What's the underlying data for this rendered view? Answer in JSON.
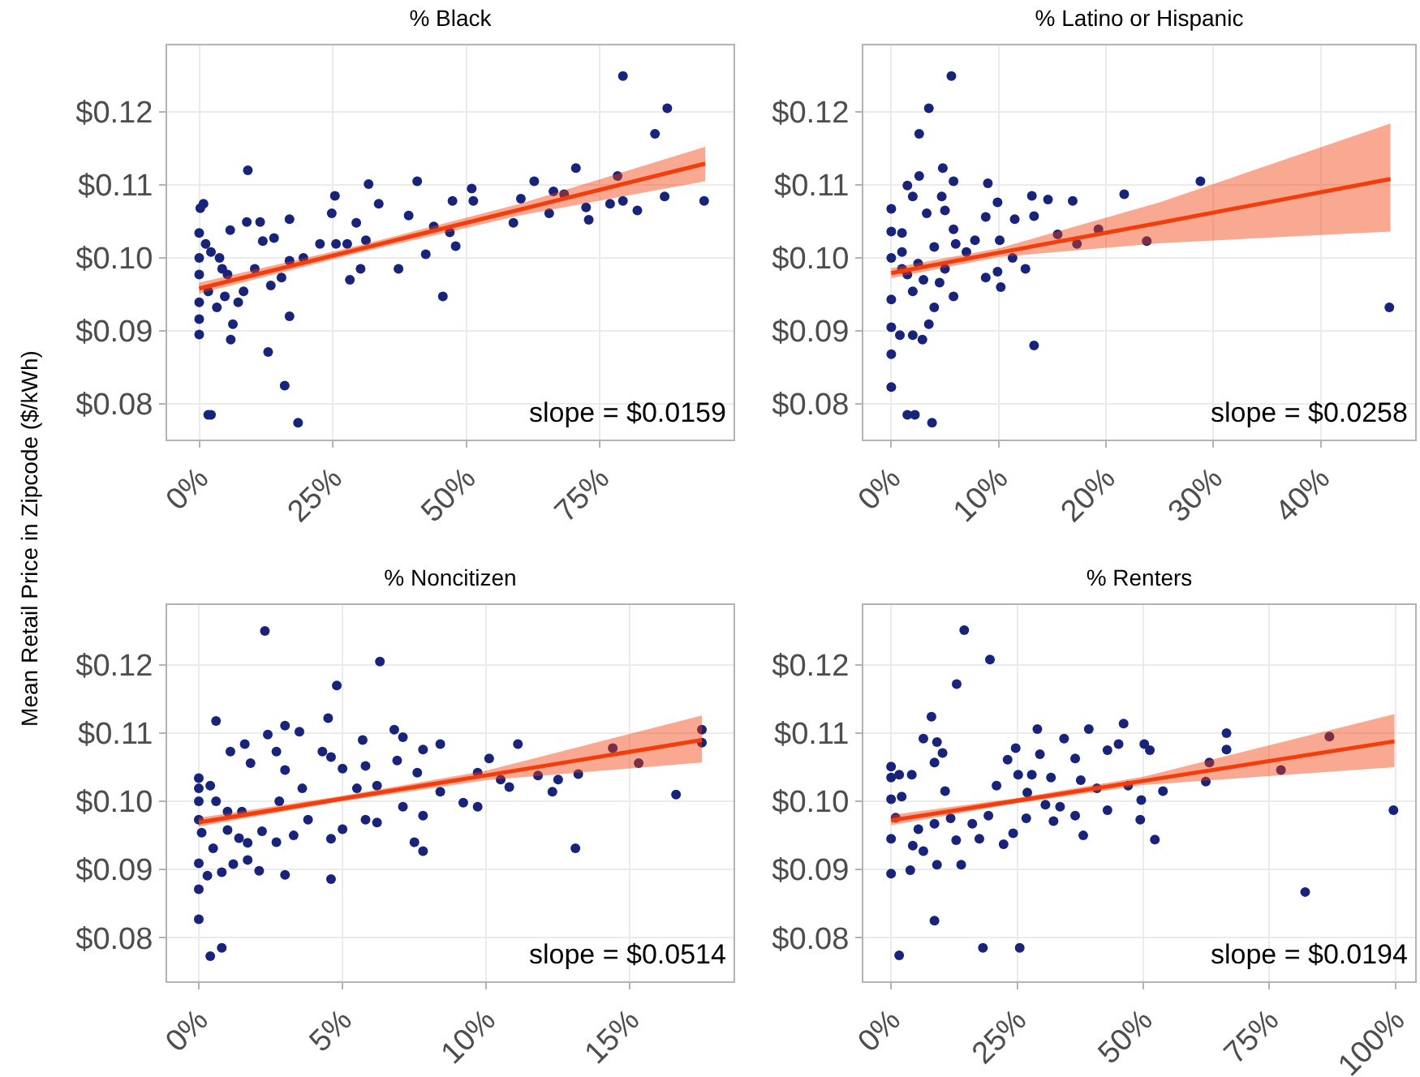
{
  "chart_data": [
    {
      "type": "scatter",
      "title": "% Black",
      "ylabel": "Mean Retail Price in Zipcode ($/kWh)",
      "grid": true,
      "line_style": "solid",
      "annotations": [
        "slope = $0.0159"
      ],
      "xlim": [
        -0.06,
        1.0
      ],
      "xticks": [
        {
          "value": 0,
          "label": "0%"
        },
        {
          "value": 0.25,
          "label": "25%"
        },
        {
          "value": 0.5,
          "label": "50%"
        },
        {
          "value": 0.75,
          "label": "75%"
        }
      ],
      "ylim": [
        0.0751,
        0.1291
      ],
      "yticks": [
        {
          "value": 0.08,
          "label": "$0.08"
        },
        {
          "value": 0.09,
          "label": "$0.09"
        },
        {
          "value": 0.1,
          "label": "$0.10"
        },
        {
          "value": 0.11,
          "label": "$0.11"
        },
        {
          "value": 0.12,
          "label": "$0.12"
        }
      ],
      "series": [
        {
          "type": "scatter",
          "marker": "circle",
          "color": "#18247a",
          "x": [
            0.793,
            0.876,
            0.853,
            0.091,
            0.705,
            0.783,
            0.627,
            0.408,
            0.317,
            0.51,
            0.254,
            0.663,
            0.683,
            0.602,
            0.474,
            0.336,
            0.513,
            0.871,
            0.945,
            0.769,
            0.793,
            0.655,
            0.82,
            0.724,
            0.729,
            0.588,
            0.392,
            0.248,
            0.294,
            0.439,
            0.469,
            0.48,
            0.424,
            0.373,
            0.456,
            0.002,
            0.008,
            0,
            0,
            0,
            0,
            0,
            0,
            0.012,
            0.017,
            0.033,
            0.043,
            0.058,
            0.063,
            0.059,
            0.089,
            0.114,
            0.119,
            0.14,
            0.169,
            0.169,
            0.129,
            0.16,
            0.185,
            0.022,
            0.017,
            0.195,
            0.226,
            0.256,
            0.277,
            0.282,
            0.302,
            0.312,
            0.083,
            0.073,
            0.053,
            0.104,
            0.134,
            0.154,
            0.169,
            0.022,
            0.038,
            0.048
          ],
          "values": [
            0.1249,
            0.1205,
            0.117,
            0.112,
            0.1123,
            0.1112,
            0.1105,
            0.1105,
            0.1101,
            0.1095,
            0.1085,
            0.1091,
            0.1087,
            0.1081,
            0.1078,
            0.1074,
            0.1078,
            0.1084,
            0.1078,
            0.1074,
            0.1078,
            0.1061,
            0.1065,
            0.1069,
            0.1052,
            0.1048,
            0.1058,
            0.1061,
            0.1048,
            0.1043,
            0.1035,
            0.1016,
            0.1005,
            0.0985,
            0.0947,
            0.1068,
            0.1074,
            0.1034,
            0.1,
            0.0977,
            0.0939,
            0.0916,
            0.0895,
            0.1019,
            0.0954,
            0.0932,
            0.0985,
            0.1038,
            0.0909,
            0.0888,
            0.1049,
            0.1049,
            0.1023,
            0.1027,
            0.1053,
            0.092,
            0.0871,
            0.0825,
            0.0774,
            0.0785,
            0.0785,
            0.1,
            0.1019,
            0.1019,
            0.1019,
            0.097,
            0.0985,
            0.1024,
            0.0954,
            0.0939,
            0.0977,
            0.0985,
            0.0962,
            0.0973,
            0.0996,
            0.1008,
            0.1,
            0.0947
          ]
        },
        {
          "type": "line",
          "color": "#f23d0c",
          "x": [
            0,
            0.3,
            0.6,
            0.947
          ],
          "values": [
            0.0958,
            0.1012,
            0.1066,
            0.1129
          ],
          "lower": [
            0.0951,
            0.1007,
            0.1058,
            0.1105
          ],
          "upper": [
            0.0966,
            0.1017,
            0.1074,
            0.1152
          ]
        }
      ]
    },
    {
      "type": "scatter",
      "title": "% Latino or Hispanic",
      "grid": true,
      "line_style": "solid",
      "annotations": [
        "slope = $0.0258"
      ],
      "xlim": [
        -0.026,
        0.488
      ],
      "xticks": [
        {
          "value": 0,
          "label": "0%"
        },
        {
          "value": 0.1,
          "label": "10%"
        },
        {
          "value": 0.2,
          "label": "20%"
        },
        {
          "value": 0.3,
          "label": "30%"
        },
        {
          "value": 0.4,
          "label": "40%"
        }
      ],
      "ylim": [
        0.0751,
        0.1291
      ],
      "yticks": [
        {
          "value": 0.08,
          "label": "$0.08"
        },
        {
          "value": 0.09,
          "label": "$0.09"
        },
        {
          "value": 0.1,
          "label": "$0.10"
        },
        {
          "value": 0.11,
          "label": "$0.11"
        },
        {
          "value": 0.12,
          "label": "$0.12"
        }
      ],
      "series": [
        {
          "type": "scatter",
          "marker": "circle",
          "color": "#18247a",
          "x": [
            0.056,
            0.035,
            0.026,
            0.048,
            0.026,
            0.288,
            0.09,
            0.058,
            0.015,
            0.02,
            0.047,
            0.217,
            0.131,
            0.146,
            0.169,
            0.099,
            0,
            0.033,
            0.05,
            0.088,
            0.133,
            0.115,
            0,
            0.01,
            0.058,
            0.155,
            0.193,
            0.238,
            0.173,
            0.078,
            0.101,
            0,
            0.01,
            0.04,
            0.06,
            0.113,
            0.125,
            0.099,
            0.088,
            0.102,
            0.015,
            0.03,
            0.045,
            0.058,
            0,
            0.02,
            0.04,
            0,
            0.008,
            0.02,
            0.029,
            0.035,
            0.133,
            0.464,
            0,
            0,
            0.015,
            0.022,
            0.038,
            0.01,
            0.025,
            0.05,
            0.07
          ],
          "values": [
            0.1249,
            0.1205,
            0.117,
            0.1123,
            0.1112,
            0.1105,
            0.1102,
            0.1105,
            0.1099,
            0.1084,
            0.1084,
            0.1087,
            0.1085,
            0.108,
            0.1078,
            0.1076,
            0.1067,
            0.1061,
            0.1065,
            0.1056,
            0.1057,
            0.1053,
            0.1036,
            0.1034,
            0.1039,
            0.1032,
            0.1039,
            0.1023,
            0.1019,
            0.1024,
            0.1024,
            0.1,
            0.1008,
            0.1015,
            0.1019,
            0.1,
            0.0985,
            0.0981,
            0.0973,
            0.096,
            0.0977,
            0.097,
            0.0966,
            0.0947,
            0.0943,
            0.0954,
            0.0932,
            0.0905,
            0.0894,
            0.0894,
            0.0888,
            0.0909,
            0.088,
            0.0932,
            0.0868,
            0.0823,
            0.0785,
            0.0785,
            0.0774,
            0.0985,
            0.0992,
            0.0985,
            0.1008
          ]
        },
        {
          "type": "line",
          "color": "#f23d0c",
          "x": [
            0,
            0.1,
            0.25,
            0.465
          ],
          "values": [
            0.0979,
            0.1007,
            0.1048,
            0.1108
          ],
          "lower": [
            0.0972,
            0.1001,
            0.102,
            0.1036
          ],
          "upper": [
            0.0986,
            0.1013,
            0.1076,
            0.1184
          ]
        }
      ]
    },
    {
      "type": "scatter",
      "title": "% Noncitizen",
      "grid": true,
      "line_style": "solid",
      "annotations": [
        "slope = $0.0514"
      ],
      "xlim": [
        -0.011,
        0.186
      ],
      "xticks": [
        {
          "value": 0,
          "label": "0%"
        },
        {
          "value": 0.05,
          "label": "5%"
        },
        {
          "value": 0.1,
          "label": "10%"
        },
        {
          "value": 0.15,
          "label": "15%"
        }
      ],
      "ylim": [
        0.0736,
        0.1288
      ],
      "yticks": [
        {
          "value": 0.08,
          "label": "$0.08"
        },
        {
          "value": 0.09,
          "label": "$0.09"
        },
        {
          "value": 0.1,
          "label": "$0.10"
        },
        {
          "value": 0.11,
          "label": "$0.11"
        },
        {
          "value": 0.12,
          "label": "$0.12"
        }
      ],
      "series": [
        {
          "type": "scatter",
          "marker": "circle",
          "color": "#18247a",
          "x": [
            0.023,
            0.063,
            0.048,
            0.006,
            0.045,
            0.03,
            0.035,
            0.024,
            0.068,
            0.071,
            0.057,
            0.084,
            0.111,
            0.016,
            0.011,
            0.027,
            0.043,
            0.046,
            0.069,
            0.078,
            0.018,
            0.03,
            0.05,
            0.058,
            0.076,
            0.101,
            0.097,
            0.144,
            0.153,
            0.175,
            0.175,
            0.132,
            0.125,
            0.118,
            0.105,
            0.108,
            0.123,
            0.092,
            0.097,
            0.166,
            0.084,
            0.071,
            0.078,
            0.062,
            0.055,
            0.036,
            0.028,
            0,
            0,
            0,
            0.004,
            0.006,
            0,
            0.001,
            0.005,
            0,
            0.003,
            0.008,
            0.012,
            0.017,
            0.021,
            0.03,
            0.046,
            0.046,
            0.038,
            0.05,
            0.058,
            0.062,
            0.075,
            0.078,
            0.131,
            0.01,
            0.014,
            0.017,
            0.022,
            0.027,
            0.033,
            0,
            0,
            0.004,
            0.008,
            0.015,
            0.01
          ],
          "values": [
            0.125,
            0.1205,
            0.117,
            0.1118,
            0.1122,
            0.1111,
            0.1102,
            0.1098,
            0.1105,
            0.1094,
            0.109,
            0.1084,
            0.1084,
            0.1084,
            0.1073,
            0.1073,
            0.1073,
            0.1065,
            0.106,
            0.1076,
            0.1056,
            0.1046,
            0.1048,
            0.1052,
            0.1042,
            0.1063,
            0.1042,
            0.1078,
            0.1056,
            0.1105,
            0.1086,
            0.104,
            0.1032,
            0.1038,
            0.1032,
            0.1021,
            0.1014,
            0.0998,
            0.0992,
            0.101,
            0.1014,
            0.0992,
            0.0979,
            0.1023,
            0.1019,
            0.1019,
            0.1,
            0.1034,
            0.1019,
            0.1,
            0.1023,
            0.1,
            0.0973,
            0.0954,
            0.0931,
            0.0909,
            0.0891,
            0.0896,
            0.0908,
            0.0914,
            0.0898,
            0.0892,
            0.0886,
            0.0945,
            0.0973,
            0.0959,
            0.0973,
            0.0969,
            0.094,
            0.0927,
            0.0931,
            0.0958,
            0.0946,
            0.0939,
            0.0956,
            0.094,
            0.095,
            0.0871,
            0.0827,
            0.0773,
            0.0785,
            0.0985,
            0.0985
          ]
        },
        {
          "type": "line",
          "color": "#f23d0c",
          "x": [
            0,
            0.05,
            0.1,
            0.175
          ],
          "values": [
            0.0969,
            0.1004,
            0.1038,
            0.109
          ],
          "lower": [
            0.0963,
            0.1,
            0.1031,
            0.1057
          ],
          "upper": [
            0.0976,
            0.1008,
            0.1045,
            0.1126
          ]
        }
      ]
    },
    {
      "type": "scatter",
      "title": "% Renters",
      "grid": true,
      "line_style": "solid",
      "annotations": [
        "slope = $0.0194"
      ],
      "xlim": [
        -0.055,
        1.039
      ],
      "xticks": [
        {
          "value": 0,
          "label": "0%"
        },
        {
          "value": 0.25,
          "label": "25%"
        },
        {
          "value": 0.5,
          "label": "50%"
        },
        {
          "value": 0.75,
          "label": "75%"
        },
        {
          "value": 1,
          "label": "100%"
        }
      ],
      "ylim": [
        0.0736,
        0.1288
      ],
      "yticks": [
        {
          "value": 0.08,
          "label": "$0.08"
        },
        {
          "value": 0.09,
          "label": "$0.09"
        },
        {
          "value": 0.1,
          "label": "$0.10"
        },
        {
          "value": 0.11,
          "label": "$0.11"
        },
        {
          "value": 0.12,
          "label": "$0.12"
        }
      ],
      "series": [
        {
          "type": "scatter",
          "marker": "circle",
          "color": "#18247a",
          "x": [
            0.145,
            0.196,
            0.13,
            0.08,
            0.461,
            0.665,
            0.29,
            0.392,
            0.064,
            0.091,
            0.343,
            0.451,
            0.502,
            0.247,
            0.869,
            0.665,
            0.102,
            0.086,
            0.231,
            0.295,
            0.365,
            0.429,
            0.513,
            0.631,
            0.773,
            0,
            0,
            0.016,
            0.041,
            0,
            0.021,
            0.252,
            0.279,
            0.317,
            0.376,
            0.408,
            0.47,
            0.539,
            0.624,
            0.209,
            0.107,
            0.27,
            0.306,
            0.335,
            0.365,
            0.429,
            0.496,
            0.494,
            0.523,
            0.381,
            0.322,
            0.268,
            0.242,
            0.223,
            0.175,
            0.193,
            0.161,
            0.129,
            0.139,
            0.091,
            0.064,
            0.043,
            0.038,
            0,
            0,
            0.009,
            0.054,
            0.086,
            0.118,
            0.996,
            0.821,
            0.086,
            0.182,
            0.255,
            0.016
          ],
          "values": [
            0.1251,
            0.1208,
            0.1172,
            0.1124,
            0.1114,
            0.11,
            0.1106,
            0.1106,
            0.1092,
            0.1087,
            0.1092,
            0.1084,
            0.1084,
            0.1078,
            0.1095,
            0.1076,
            0.1071,
            0.1057,
            0.1061,
            0.1069,
            0.1063,
            0.1075,
            0.1075,
            0.1057,
            0.1046,
            0.1051,
            0.1035,
            0.1039,
            0.1039,
            0.1003,
            0.1007,
            0.1039,
            0.1039,
            0.1035,
            0.1031,
            0.1019,
            0.1023,
            0.1015,
            0.1029,
            0.1023,
            0.1015,
            0.1013,
            0.0995,
            0.0992,
            0.0979,
            0.0987,
            0.1002,
            0.0973,
            0.0944,
            0.095,
            0.0971,
            0.0975,
            0.0953,
            0.0937,
            0.0945,
            0.0979,
            0.0967,
            0.0943,
            0.0907,
            0.0907,
            0.0927,
            0.0935,
            0.0899,
            0.0945,
            0.0894,
            0.0976,
            0.0959,
            0.0967,
            0.0975,
            0.0987,
            0.0867,
            0.0825,
            0.0785,
            0.0785,
            0.0774
          ]
        },
        {
          "type": "line",
          "color": "#f23d0c",
          "x": [
            0,
            0.25,
            0.5,
            0.998
          ],
          "values": [
            0.0972,
            0.1001,
            0.103,
            0.1088
          ],
          "lower": [
            0.0965,
            0.0997,
            0.1024,
            0.105
          ],
          "upper": [
            0.098,
            0.1005,
            0.1036,
            0.1128
          ]
        }
      ]
    }
  ]
}
